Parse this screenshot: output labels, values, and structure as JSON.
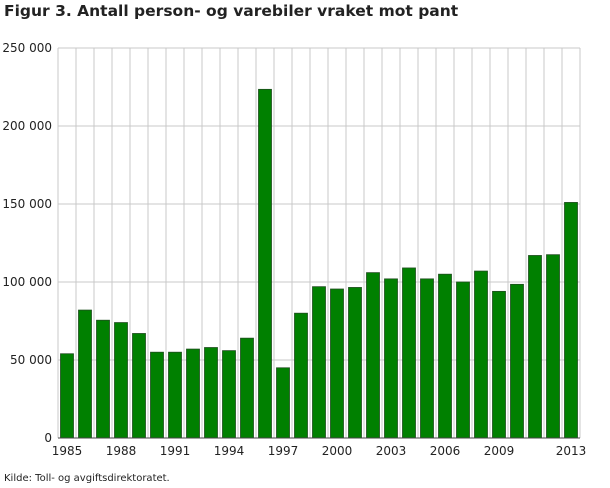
{
  "chart_data": {
    "type": "bar",
    "title": "Figur 3. Antall person- og varebiler vraket mot pant",
    "source": "Kilde: Toll- og avgiftsdirektoratet.",
    "xlabel": "",
    "ylabel": "",
    "ylim": [
      0,
      250000
    ],
    "yticks": [
      0,
      50000,
      100000,
      150000,
      200000,
      250000
    ],
    "ytick_labels": [
      "0",
      "50 000",
      "100 000",
      "150 000",
      "200 000",
      "250 000"
    ],
    "xtick_labels": [
      "1985",
      "1988",
      "1991",
      "1994",
      "1997",
      "2000",
      "2003",
      "2006",
      "2009",
      "2013"
    ],
    "categories": [
      "1985",
      "1986",
      "1987",
      "1988",
      "1989",
      "1990",
      "1991",
      "1992",
      "1993",
      "1994",
      "1995",
      "1996",
      "1997",
      "1998",
      "1999",
      "2000",
      "2001",
      "2002",
      "2003",
      "2004",
      "2005",
      "2006",
      "2007",
      "2008",
      "2009",
      "2010",
      "2011",
      "2012",
      "2013"
    ],
    "values": [
      54000,
      82000,
      75500,
      74000,
      67000,
      55000,
      55000,
      57000,
      58000,
      56000,
      64000,
      223500,
      45000,
      80000,
      97000,
      95500,
      96500,
      106000,
      102000,
      109000,
      102000,
      105000,
      100000,
      107000,
      94000,
      98500,
      117000,
      117500,
      151000
    ],
    "grid": true,
    "bar_color": "#008000"
  }
}
